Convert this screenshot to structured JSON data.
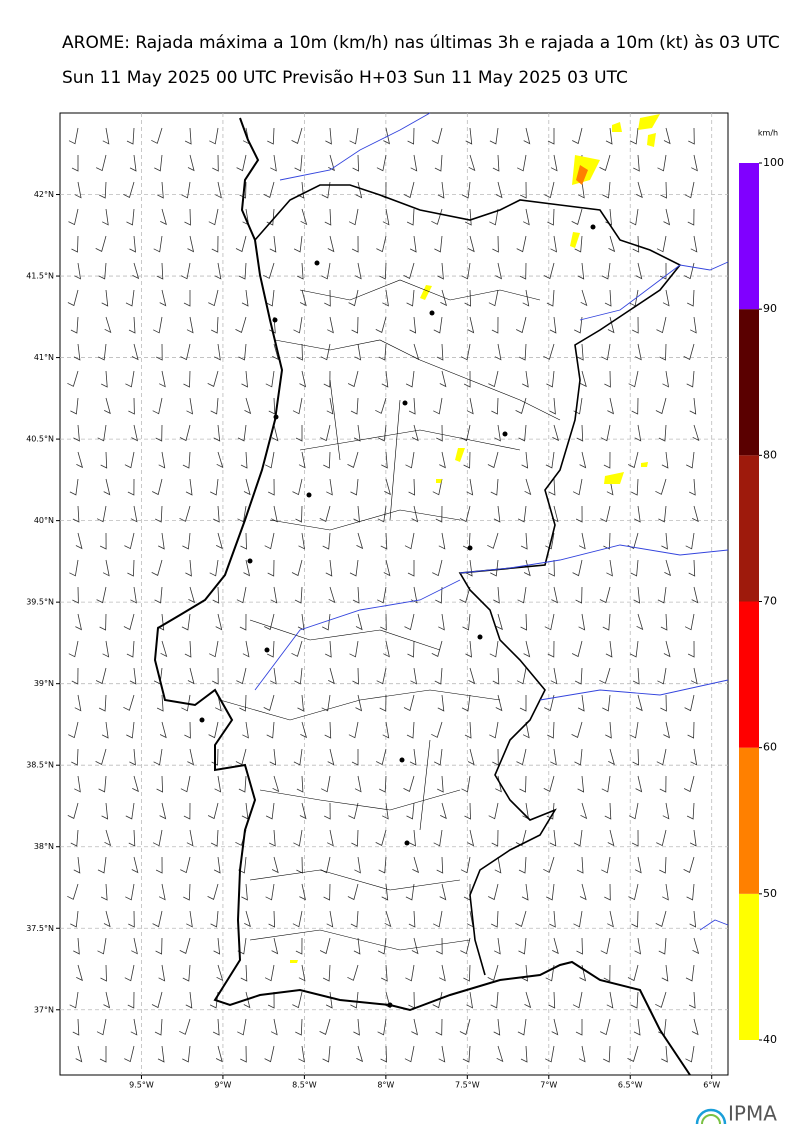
{
  "title": "AROME: Rajada máxima a 10m (km/h) nas últimas 3h e rajada a 10m (kt) às 03 UTC",
  "subtitle": "Sun 11 May 2025 00 UTC Previsão H+03 Sun 11 May 2025 03 UTC",
  "map": {
    "xlim": [
      -10,
      -5.9
    ],
    "ylim": [
      36.6,
      42.5
    ],
    "xticks": [
      {
        "value": -9.5,
        "label": "9.5°W"
      },
      {
        "value": -9,
        "label": "9°W"
      },
      {
        "value": -8.5,
        "label": "8.5°W"
      },
      {
        "value": -8,
        "label": "8°W"
      },
      {
        "value": -7.5,
        "label": "7.5°W"
      },
      {
        "value": -7,
        "label": "7°W"
      },
      {
        "value": -6.5,
        "label": "6.5°W"
      },
      {
        "value": -6,
        "label": "6°W"
      }
    ],
    "yticks": [
      {
        "value": 37,
        "label": "37°N"
      },
      {
        "value": 37.5,
        "label": "37.5°N"
      },
      {
        "value": 38,
        "label": "38°N"
      },
      {
        "value": 38.5,
        "label": "38.5°N"
      },
      {
        "value": 39,
        "label": "39°N"
      },
      {
        "value": 39.5,
        "label": "39.5°N"
      },
      {
        "value": 40,
        "label": "40°N"
      },
      {
        "value": 40.5,
        "label": "40.5°N"
      },
      {
        "value": 41,
        "label": "41°N"
      },
      {
        "value": 41.5,
        "label": "41.5°N"
      },
      {
        "value": 42,
        "label": "42°N"
      }
    ],
    "grid": true
  },
  "colorbar": {
    "unit": "km/h",
    "ticks": [
      40,
      50,
      60,
      70,
      80,
      90,
      100
    ],
    "colors": [
      "#ffff00",
      "#ff8000",
      "#ff0000",
      "#9e1a0c",
      "#5a0000",
      "#8000ff"
    ]
  },
  "logo": "IPMA"
}
